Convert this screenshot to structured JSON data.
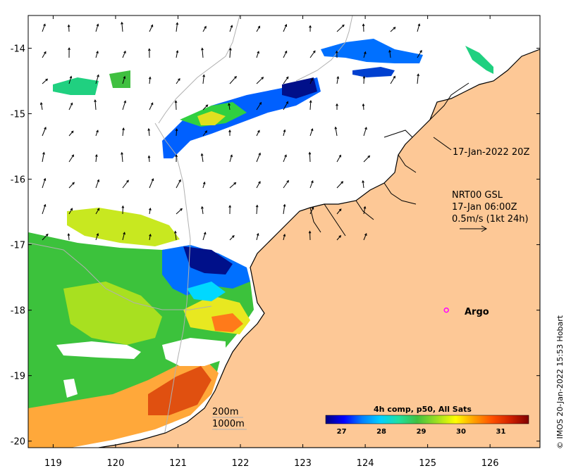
{
  "map": {
    "lon_range": [
      118.6,
      126.8
    ],
    "lat_range": [
      -20.1,
      -13.5
    ],
    "x_ticks": [
      "119",
      "120",
      "121",
      "122",
      "123",
      "124",
      "125",
      "126"
    ],
    "y_ticks": [
      "-14",
      "-15",
      "-16",
      "-17",
      "-18",
      "-19",
      "-20"
    ],
    "colors": {
      "land": "#fdc896",
      "ocean": "#ffffff",
      "coast": "#000000",
      "bathymetry": "#b0b0b0"
    }
  },
  "annotations": {
    "track_label": "17-Jan-2022 20Z",
    "wind_source": "NRT00 GSL",
    "wind_time": "17-Jan 06:00Z",
    "wind_scale": "0.5m/s (1kt 24h)",
    "argo_label": "Argo",
    "depth_200": "200m",
    "depth_1000": "1000m",
    "credit": "© IMOS 20-Jan-2022 15:53 Hobart"
  },
  "colorbar": {
    "title": "4h comp, p50, All Sats",
    "ticks": [
      "27",
      "28",
      "29",
      "30",
      "31"
    ],
    "min": 26.6,
    "max": 31.7,
    "colors": [
      "#00007f",
      "#0000ff",
      "#0080ff",
      "#00d0ff",
      "#20e0a0",
      "#40c040",
      "#a0e020",
      "#ffff00",
      "#ffa000",
      "#ff5000",
      "#d02000",
      "#800000"
    ]
  },
  "argo": {
    "lon": 125.3,
    "lat": -18.0,
    "color": "#ff00ff"
  }
}
